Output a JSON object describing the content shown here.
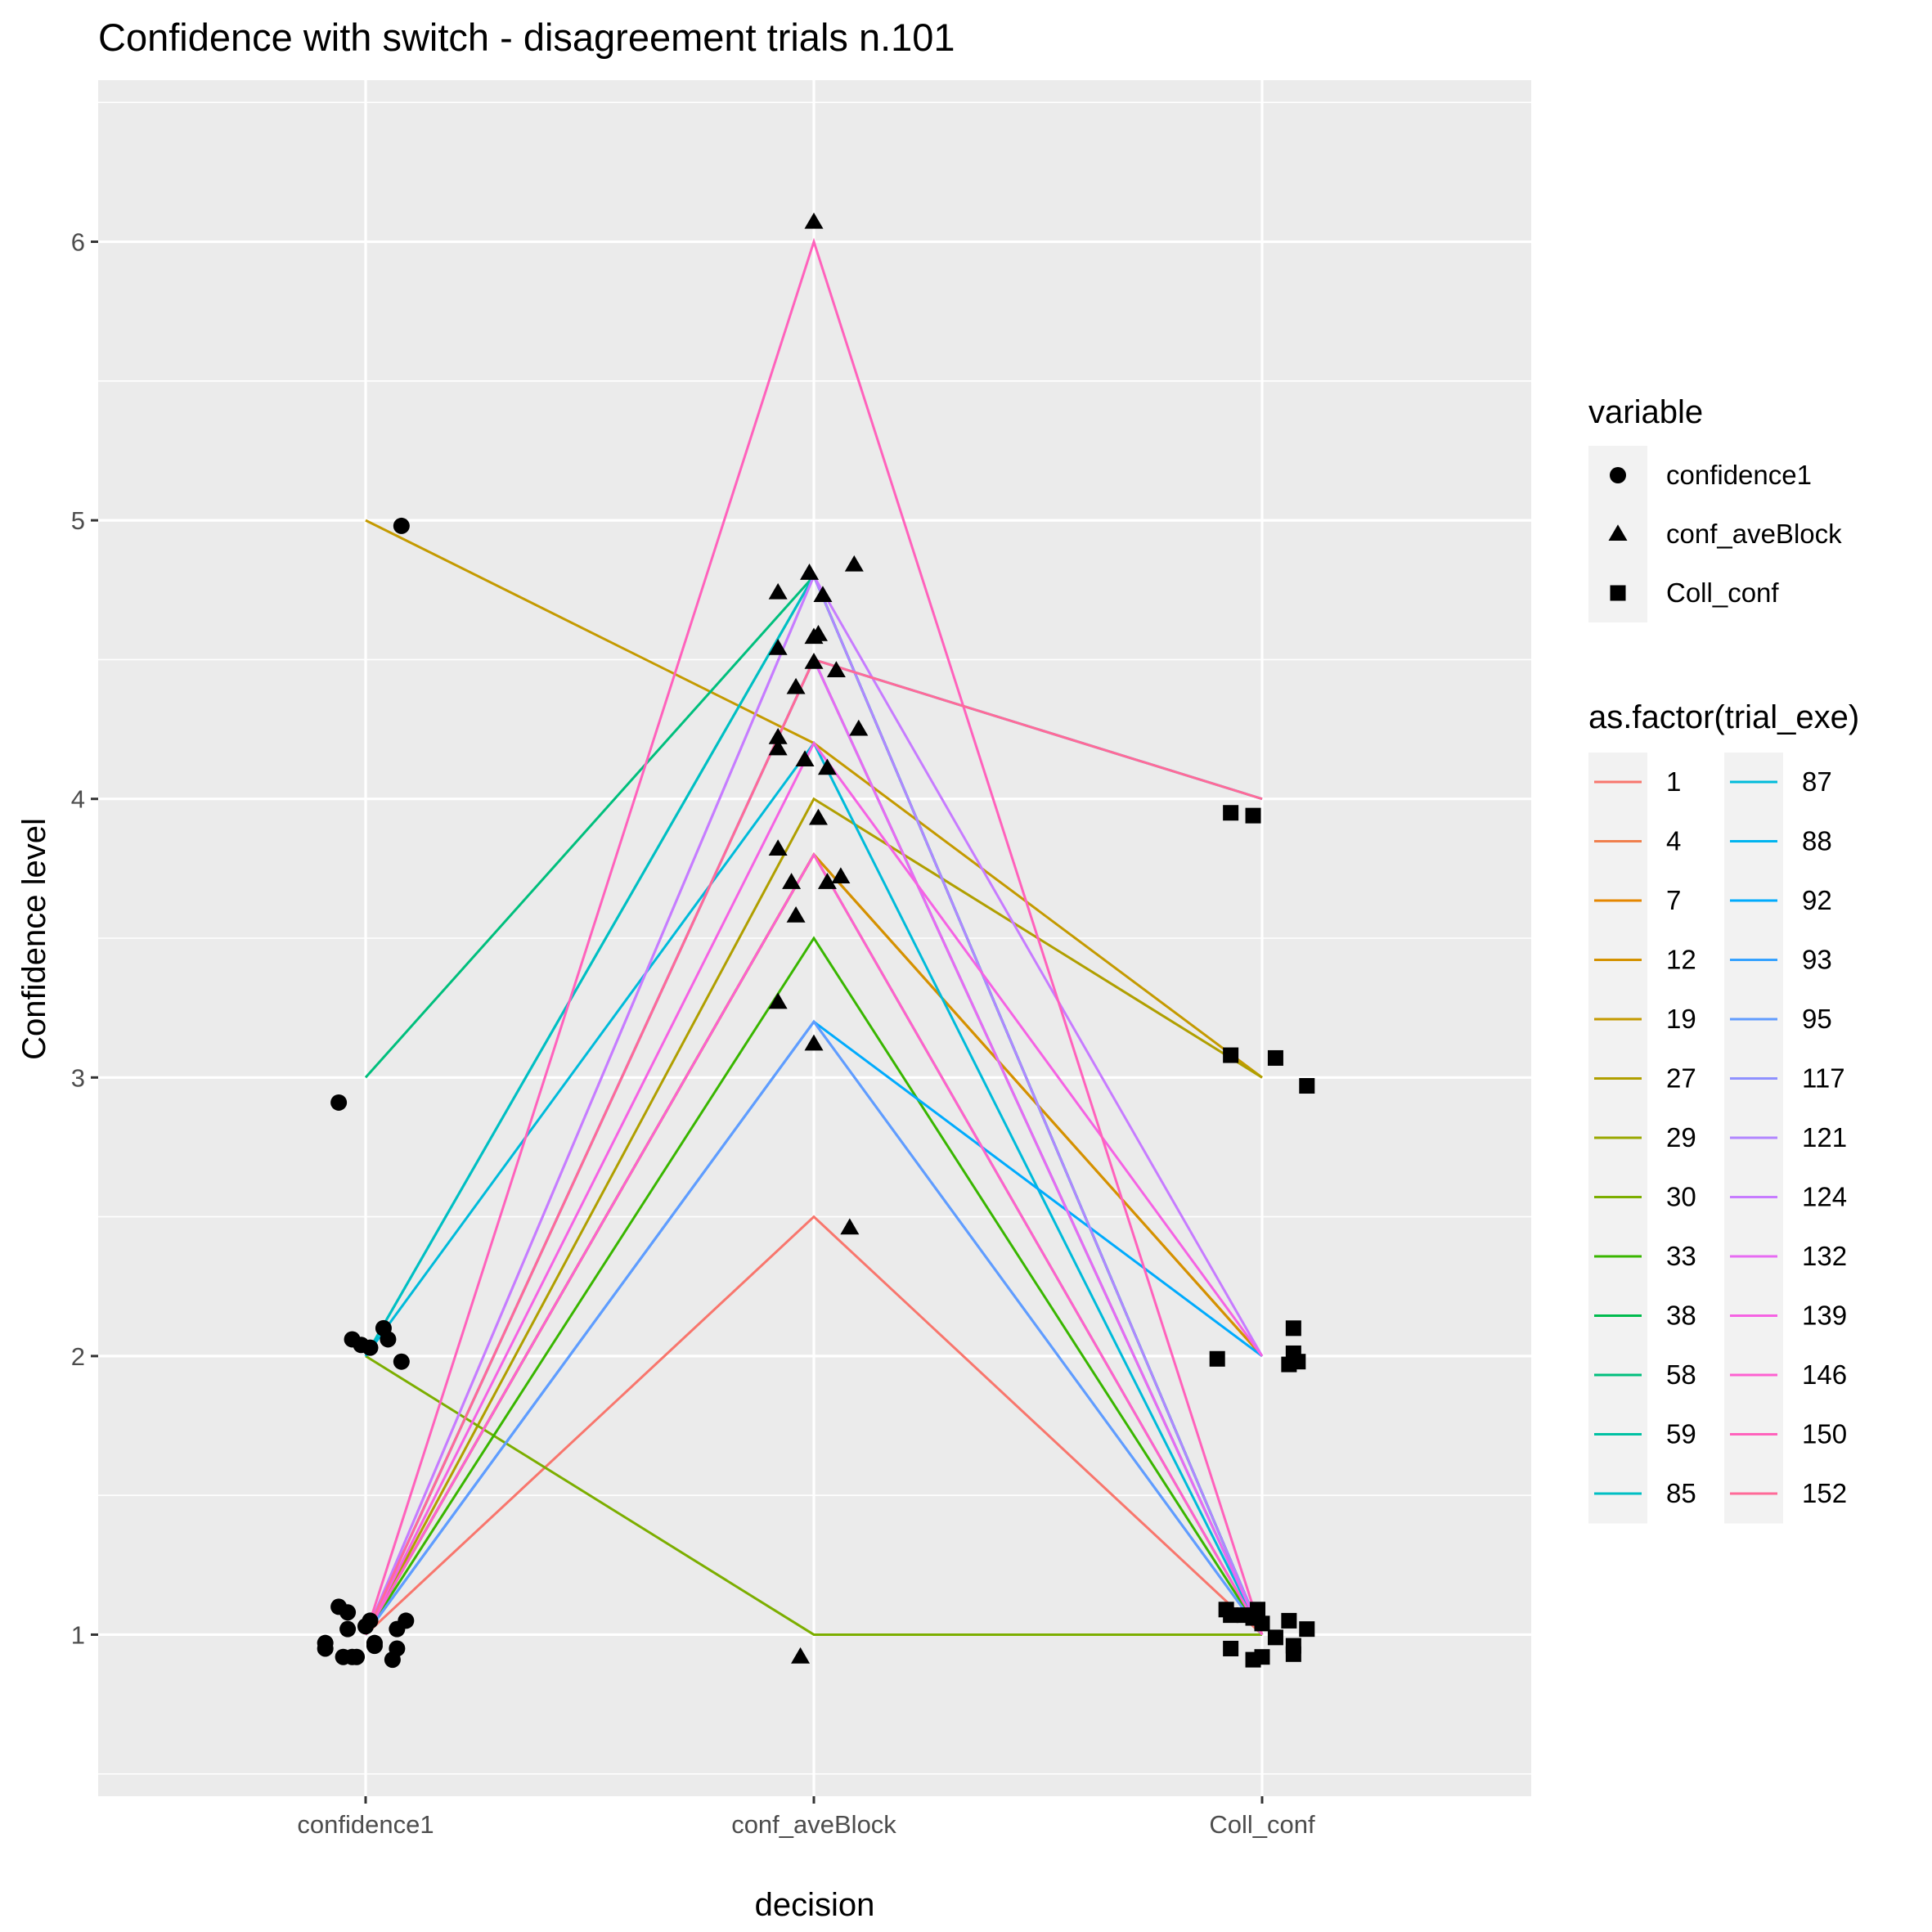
{
  "chart_data": {
    "type": "line",
    "title": "Confidence with switch - disagreement trials n.101",
    "xlabel": "decision",
    "ylabel": "Confidence level",
    "categories": [
      "confidence1",
      "conf_aveBlock",
      "Coll_conf"
    ],
    "yticks": [
      "1",
      "2",
      "3",
      "4",
      "5",
      "6"
    ],
    "ylim": [
      0.42,
      6.58
    ],
    "grid": true,
    "legend_position": "right",
    "shape_legend": {
      "title": "variable",
      "items": [
        {
          "label": "confidence1",
          "shape": "circle"
        },
        {
          "label": "conf_aveBlock",
          "shape": "triangle"
        },
        {
          "label": "Coll_conf",
          "shape": "square"
        }
      ]
    },
    "color_legend": {
      "title": "as.factor(trial_exe)",
      "items": [
        {
          "label": "1",
          "color": "#F8766D"
        },
        {
          "label": "4",
          "color": "#F07F4D"
        },
        {
          "label": "7",
          "color": "#E58700"
        },
        {
          "label": "12",
          "color": "#D49200"
        },
        {
          "label": "19",
          "color": "#C49A00"
        },
        {
          "label": "27",
          "color": "#B09F00"
        },
        {
          "label": "29",
          "color": "#99A800"
        },
        {
          "label": "30",
          "color": "#7CAE00"
        },
        {
          "label": "33",
          "color": "#39B600"
        },
        {
          "label": "38",
          "color": "#00BB4E"
        },
        {
          "label": "58",
          "color": "#00BF7D"
        },
        {
          "label": "59",
          "color": "#00C1A3"
        },
        {
          "label": "85",
          "color": "#00BFC4"
        },
        {
          "label": "87",
          "color": "#00BBDA"
        },
        {
          "label": "88",
          "color": "#00B4EF"
        },
        {
          "label": "92",
          "color": "#00ABFD"
        },
        {
          "label": "93",
          "color": "#35A2FF"
        },
        {
          "label": "95",
          "color": "#619CFF"
        },
        {
          "label": "117",
          "color": "#8F91FF"
        },
        {
          "label": "121",
          "color": "#B186FF"
        },
        {
          "label": "124",
          "color": "#C77CFF"
        },
        {
          "label": "132",
          "color": "#E76BF3"
        },
        {
          "label": "139",
          "color": "#F563E3"
        },
        {
          "label": "146",
          "color": "#FD61D1"
        },
        {
          "label": "150",
          "color": "#FF62BC"
        },
        {
          "label": "152",
          "color": "#FF6A98"
        }
      ]
    },
    "series": [
      {
        "name": "1",
        "values": [
          1,
          2.5,
          1
        ]
      },
      {
        "name": "4",
        "values": [
          1,
          3.8,
          2
        ]
      },
      {
        "name": "7",
        "values": [
          1,
          3.8,
          2
        ]
      },
      {
        "name": "12",
        "values": [
          1,
          3.8,
          2
        ]
      },
      {
        "name": "19",
        "values": [
          5,
          4.2,
          3
        ]
      },
      {
        "name": "27",
        "values": [
          1,
          4,
          3
        ]
      },
      {
        "name": "29",
        "values": [
          1,
          3.8,
          1
        ]
      },
      {
        "name": "30",
        "values": [
          2,
          1,
          1
        ]
      },
      {
        "name": "33",
        "values": [
          1,
          3.5,
          1
        ]
      },
      {
        "name": "38",
        "values": [
          1,
          4.5,
          1
        ]
      },
      {
        "name": "58",
        "values": [
          3,
          4.8,
          1
        ]
      },
      {
        "name": "59",
        "values": [
          2,
          4.8,
          1
        ]
      },
      {
        "name": "85",
        "values": [
          2,
          4.8,
          1
        ]
      },
      {
        "name": "87",
        "values": [
          2,
          4.2,
          1
        ]
      },
      {
        "name": "88",
        "values": [
          1,
          4.5,
          4
        ]
      },
      {
        "name": "92",
        "values": [
          1,
          3.2,
          2
        ]
      },
      {
        "name": "93",
        "values": [
          1,
          3.2,
          1
        ]
      },
      {
        "name": "95",
        "values": [
          1,
          3.2,
          1
        ]
      },
      {
        "name": "117",
        "values": [
          1,
          4.5,
          1
        ]
      },
      {
        "name": "121",
        "values": [
          1,
          4.8,
          1
        ]
      },
      {
        "name": "124",
        "values": [
          1,
          4.8,
          2
        ]
      },
      {
        "name": "132",
        "values": [
          1,
          4.5,
          1
        ]
      },
      {
        "name": "139",
        "values": [
          1,
          4.2,
          2
        ]
      },
      {
        "name": "146",
        "values": [
          1,
          3.8,
          1
        ]
      },
      {
        "name": "150",
        "values": [
          1,
          6,
          1
        ]
      },
      {
        "name": "152",
        "values": [
          1,
          4.5,
          4
        ]
      }
    ],
    "points": {
      "confidence1": [
        {
          "x": 0.08,
          "y": 4.98
        },
        {
          "x": -0.06,
          "y": 2.91
        },
        {
          "x": -0.03,
          "y": 2.06
        },
        {
          "x": -0.01,
          "y": 2.04
        },
        {
          "x": 0.01,
          "y": 2.03
        },
        {
          "x": 0.04,
          "y": 2.1
        },
        {
          "x": 0.05,
          "y": 2.06
        },
        {
          "x": 0.08,
          "y": 1.98
        },
        {
          "x": -0.06,
          "y": 1.1
        },
        {
          "x": -0.04,
          "y": 1.08
        },
        {
          "x": -0.04,
          "y": 1.02
        },
        {
          "x": 0.01,
          "y": 1.05
        },
        {
          "x": 0.0,
          "y": 1.03
        },
        {
          "x": 0.02,
          "y": 0.97
        },
        {
          "x": 0.02,
          "y": 0.96
        },
        {
          "x": -0.09,
          "y": 0.97
        },
        {
          "x": -0.09,
          "y": 0.95
        },
        {
          "x": -0.05,
          "y": 0.92
        },
        {
          "x": -0.02,
          "y": 0.92
        },
        {
          "x": -0.03,
          "y": 0.92
        },
        {
          "x": 0.07,
          "y": 1.02
        },
        {
          "x": 0.09,
          "y": 1.05
        },
        {
          "x": 0.07,
          "y": 0.95
        },
        {
          "x": 0.06,
          "y": 0.91
        }
      ],
      "conf_aveBlock": [
        {
          "x": 0.0,
          "y": 6.07
        },
        {
          "x": -0.08,
          "y": 4.74
        },
        {
          "x": -0.01,
          "y": 4.81
        },
        {
          "x": 0.09,
          "y": 4.84
        },
        {
          "x": 0.02,
          "y": 4.73
        },
        {
          "x": -0.08,
          "y": 4.54
        },
        {
          "x": 0.0,
          "y": 4.58
        },
        {
          "x": 0.01,
          "y": 4.59
        },
        {
          "x": 0.0,
          "y": 4.49
        },
        {
          "x": 0.05,
          "y": 4.46
        },
        {
          "x": -0.04,
          "y": 4.4
        },
        {
          "x": 0.1,
          "y": 4.25
        },
        {
          "x": -0.08,
          "y": 4.22
        },
        {
          "x": -0.08,
          "y": 4.18
        },
        {
          "x": -0.02,
          "y": 4.14
        },
        {
          "x": 0.03,
          "y": 4.11
        },
        {
          "x": 0.01,
          "y": 3.93
        },
        {
          "x": -0.08,
          "y": 3.82
        },
        {
          "x": -0.05,
          "y": 3.7
        },
        {
          "x": 0.03,
          "y": 3.7
        },
        {
          "x": 0.06,
          "y": 3.72
        },
        {
          "x": -0.04,
          "y": 3.58
        },
        {
          "x": -0.08,
          "y": 3.27
        },
        {
          "x": 0.0,
          "y": 3.12
        },
        {
          "x": 0.08,
          "y": 2.46
        },
        {
          "x": -0.03,
          "y": 0.92
        }
      ],
      "Coll_conf": [
        {
          "x": -0.07,
          "y": 3.95
        },
        {
          "x": -0.02,
          "y": 3.94
        },
        {
          "x": -0.07,
          "y": 3.08
        },
        {
          "x": 0.03,
          "y": 3.07
        },
        {
          "x": 0.1,
          "y": 2.97
        },
        {
          "x": 0.07,
          "y": 2.1
        },
        {
          "x": 0.07,
          "y": 2.01
        },
        {
          "x": 0.08,
          "y": 1.98
        },
        {
          "x": 0.06,
          "y": 1.97
        },
        {
          "x": -0.1,
          "y": 1.99
        },
        {
          "x": -0.08,
          "y": 1.09
        },
        {
          "x": -0.07,
          "y": 1.07
        },
        {
          "x": -0.04,
          "y": 1.07
        },
        {
          "x": -0.02,
          "y": 1.06
        },
        {
          "x": -0.01,
          "y": 1.09
        },
        {
          "x": 0.0,
          "y": 1.04
        },
        {
          "x": 0.06,
          "y": 1.05
        },
        {
          "x": 0.1,
          "y": 1.02
        },
        {
          "x": 0.03,
          "y": 0.99
        },
        {
          "x": -0.07,
          "y": 0.95
        },
        {
          "x": 0.07,
          "y": 0.96
        },
        {
          "x": 0.0,
          "y": 0.92
        },
        {
          "x": -0.02,
          "y": 0.91
        },
        {
          "x": 0.07,
          "y": 0.93
        }
      ]
    }
  }
}
